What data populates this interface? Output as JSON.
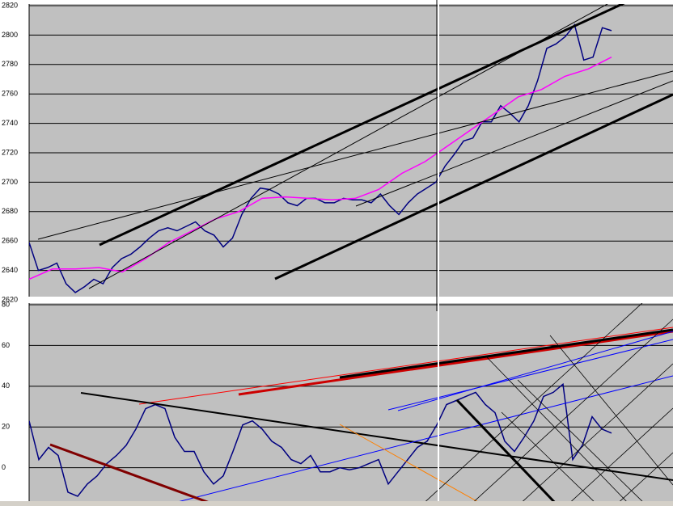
{
  "chart_data": [
    {
      "type": "line",
      "ylim": [
        2620,
        2820
      ],
      "yticks": [
        2620,
        2640,
        2660,
        2680,
        2700,
        2720,
        2740,
        2760,
        2780,
        2800,
        2820
      ],
      "grid": true,
      "background": "#c0c0c0",
      "series": [
        {
          "color": "#000080",
          "values": [
            2659,
            2640,
            2642,
            2645,
            2631,
            2625,
            2629,
            2634,
            2631,
            2642,
            2648,
            2651,
            2656,
            2662,
            2667,
            2669,
            2667,
            2670,
            2673,
            2667,
            2664,
            2656,
            2662,
            2678,
            2689,
            2696,
            2695,
            2692,
            2686,
            2684,
            2689,
            2689,
            2686,
            2686,
            2689,
            2688,
            2688,
            2686,
            2692,
            2684,
            2678,
            2686,
            2692,
            2696,
            2700,
            2711,
            2719,
            2728,
            2730,
            2741,
            2741,
            2752,
            2747,
            2741,
            2752,
            2769,
            2791,
            2794,
            2799,
            2807,
            2783,
            2785,
            2805,
            2803
          ]
        },
        {
          "color": "#ff00ff",
          "values": [
            2634,
            2641,
            2641,
            2642,
            2639,
            2648,
            2659,
            2667,
            2675,
            2680,
            2689,
            2690,
            2689,
            2688,
            2689,
            2695,
            2706,
            2714,
            2725,
            2736,
            2747,
            2758,
            2763,
            2772,
            2777,
            2785
          ]
        }
      ]
    },
    {
      "type": "line",
      "ylim": [
        -16,
        80
      ],
      "yticks": [
        0,
        20,
        40,
        60,
        80
      ],
      "grid": true,
      "background": "#c0c0c0",
      "series": [
        {
          "color": "#000080",
          "values": [
            23,
            4,
            10,
            6,
            -12,
            -14,
            -8,
            -4,
            2,
            6,
            11,
            19,
            29,
            31,
            29,
            15,
            8,
            8,
            -2,
            -8,
            -4,
            8,
            21,
            23,
            19,
            13,
            10,
            4,
            2,
            6,
            -2,
            -2,
            0,
            -1,
            0,
            2,
            4,
            -8,
            -2,
            4,
            10,
            13,
            21,
            31,
            33,
            35,
            37,
            31,
            27,
            13,
            8,
            15,
            23,
            35,
            37,
            41,
            4,
            11,
            25,
            19,
            17
          ]
        }
      ]
    }
  ]
}
